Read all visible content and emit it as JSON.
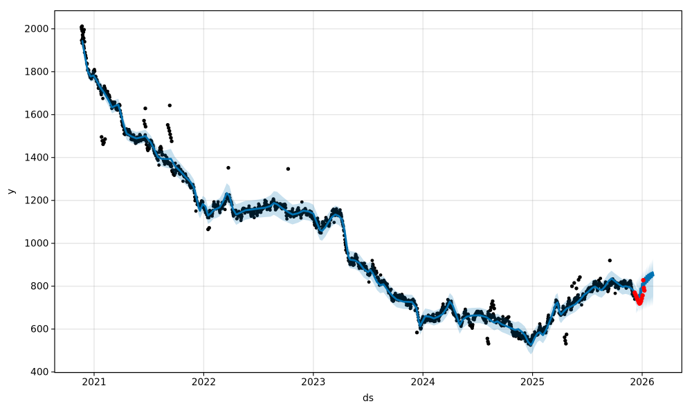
{
  "figure": {
    "kind": "prophet-style time series forecast plot",
    "background": "#ffffff"
  },
  "chart_data": {
    "type": "line",
    "subtype": "forecast with scatter observations and uncertainty band",
    "title": "",
    "xlabel": "ds",
    "ylabel": "y",
    "grid": true,
    "legend_position": "none",
    "xlim": [
      2020.6402,
      2026.3617
    ],
    "ylim": [
      397.4,
      2084.5
    ],
    "x_ticks": [
      2021,
      2022,
      2023,
      2024,
      2025,
      2026
    ],
    "y_ticks": [
      400,
      600,
      800,
      1000,
      1200,
      1400,
      1600,
      1800,
      2000
    ],
    "colors": {
      "forecast_line": "#0072B2",
      "band_fill": "#0072B2",
      "band_alpha": 0.22,
      "observations": "#000000",
      "future_observations": "#ff0000",
      "grid": "rgba(128,128,128,0.2)",
      "spine": "#000000"
    },
    "yhat_keypoints": [
      [
        2020.893,
        1943,
        26
      ],
      [
        2020.918,
        1868,
        26
      ],
      [
        2020.943,
        1800,
        25
      ],
      [
        2020.968,
        1778,
        25
      ],
      [
        2020.994,
        1782,
        25
      ],
      [
        2021.019,
        1763,
        25
      ],
      [
        2021.057,
        1727,
        26
      ],
      [
        2021.088,
        1705,
        26
      ],
      [
        2021.126,
        1672,
        27
      ],
      [
        2021.164,
        1634,
        28
      ],
      [
        2021.196,
        1642,
        28
      ],
      [
        2021.221,
        1646,
        28
      ],
      [
        2021.246,
        1600,
        30
      ],
      [
        2021.271,
        1550,
        30
      ],
      [
        2021.297,
        1512,
        30
      ],
      [
        2021.341,
        1498,
        30
      ],
      [
        2021.385,
        1489,
        30
      ],
      [
        2021.436,
        1495,
        30
      ],
      [
        2021.467,
        1500,
        30
      ],
      [
        2021.518,
        1470,
        32
      ],
      [
        2021.556,
        1430,
        33
      ],
      [
        2021.581,
        1403,
        34
      ],
      [
        2021.619,
        1394,
        36
      ],
      [
        2021.663,
        1393,
        42
      ],
      [
        2021.7,
        1394,
        46
      ],
      [
        2021.738,
        1360,
        42
      ],
      [
        2021.789,
        1335,
        38
      ],
      [
        2021.833,
        1310,
        36
      ],
      [
        2021.877,
        1288,
        36
      ],
      [
        2021.909,
        1262,
        36
      ],
      [
        2021.934,
        1212,
        36
      ],
      [
        2021.953,
        1168,
        36
      ],
      [
        2021.966,
        1152,
        36
      ],
      [
        2021.991,
        1183,
        38
      ],
      [
        2022.015,
        1172,
        40
      ],
      [
        2022.04,
        1130,
        40
      ],
      [
        2022.065,
        1140,
        40
      ],
      [
        2022.09,
        1155,
        40
      ],
      [
        2022.115,
        1160,
        42
      ],
      [
        2022.146,
        1168,
        42
      ],
      [
        2022.178,
        1196,
        44
      ],
      [
        2022.21,
        1234,
        46
      ],
      [
        2022.235,
        1220,
        48
      ],
      [
        2022.266,
        1160,
        48
      ],
      [
        2022.296,
        1134,
        48
      ],
      [
        2022.33,
        1142,
        46
      ],
      [
        2022.38,
        1154,
        44
      ],
      [
        2022.44,
        1158,
        42
      ],
      [
        2022.5,
        1162,
        42
      ],
      [
        2022.56,
        1166,
        44
      ],
      [
        2022.61,
        1174,
        50
      ],
      [
        2022.64,
        1188,
        55
      ],
      [
        2022.67,
        1182,
        58
      ],
      [
        2022.72,
        1162,
        55
      ],
      [
        2022.77,
        1146,
        50
      ],
      [
        2022.81,
        1134,
        46
      ],
      [
        2022.86,
        1140,
        44
      ],
      [
        2022.91,
        1152,
        42
      ],
      [
        2022.96,
        1148,
        42
      ],
      [
        2023.0,
        1138,
        42
      ],
      [
        2023.03,
        1098,
        44
      ],
      [
        2023.06,
        1062,
        46
      ],
      [
        2023.08,
        1058,
        46
      ],
      [
        2023.11,
        1075,
        44
      ],
      [
        2023.14,
        1100,
        42
      ],
      [
        2023.17,
        1122,
        42
      ],
      [
        2023.2,
        1134,
        42
      ],
      [
        2023.23,
        1128,
        42
      ],
      [
        2023.26,
        1112,
        42
      ],
      [
        2023.285,
        1060,
        42
      ],
      [
        2023.305,
        985,
        42
      ],
      [
        2023.32,
        938,
        42
      ],
      [
        2023.335,
        924,
        40
      ],
      [
        2023.38,
        920,
        40
      ],
      [
        2023.42,
        908,
        40
      ],
      [
        2023.46,
        880,
        40
      ],
      [
        2023.5,
        866,
        40
      ],
      [
        2023.52,
        876,
        40
      ],
      [
        2023.545,
        858,
        40
      ],
      [
        2023.58,
        820,
        38
      ],
      [
        2023.61,
        805,
        38
      ],
      [
        2023.64,
        809,
        38
      ],
      [
        2023.68,
        780,
        36
      ],
      [
        2023.72,
        756,
        36
      ],
      [
        2023.76,
        738,
        36
      ],
      [
        2023.82,
        728,
        34
      ],
      [
        2023.9,
        726,
        34
      ],
      [
        2023.94,
        700,
        36
      ],
      [
        2023.96,
        640,
        38
      ],
      [
        2023.975,
        614,
        40
      ],
      [
        2024.0,
        640,
        38
      ],
      [
        2024.02,
        660,
        36
      ],
      [
        2024.06,
        658,
        34
      ],
      [
        2024.1,
        650,
        34
      ],
      [
        2024.14,
        658,
        34
      ],
      [
        2024.18,
        670,
        36
      ],
      [
        2024.22,
        700,
        38
      ],
      [
        2024.245,
        728,
        40
      ],
      [
        2024.27,
        712,
        42
      ],
      [
        2024.3,
        672,
        42
      ],
      [
        2024.335,
        620,
        42
      ],
      [
        2024.365,
        645,
        40
      ],
      [
        2024.4,
        658,
        38
      ],
      [
        2024.45,
        663,
        36
      ],
      [
        2024.52,
        664,
        36
      ],
      [
        2024.58,
        655,
        36
      ],
      [
        2024.62,
        640,
        36
      ],
      [
        2024.65,
        630,
        36
      ],
      [
        2024.68,
        636,
        36
      ],
      [
        2024.72,
        622,
        36
      ],
      [
        2024.76,
        614,
        36
      ],
      [
        2024.8,
        605,
        36
      ],
      [
        2024.84,
        596,
        36
      ],
      [
        2024.87,
        600,
        36
      ],
      [
        2024.9,
        588,
        38
      ],
      [
        2024.93,
        572,
        40
      ],
      [
        2024.96,
        540,
        42
      ],
      [
        2024.985,
        526,
        44
      ],
      [
        2025.0,
        536,
        44
      ],
      [
        2025.02,
        560,
        42
      ],
      [
        2025.045,
        580,
        40
      ],
      [
        2025.065,
        585,
        38
      ],
      [
        2025.095,
        572,
        38
      ],
      [
        2025.12,
        592,
        38
      ],
      [
        2025.15,
        628,
        40
      ],
      [
        2025.18,
        668,
        42
      ],
      [
        2025.21,
        715,
        44
      ],
      [
        2025.228,
        724,
        44
      ],
      [
        2025.245,
        680,
        42
      ],
      [
        2025.26,
        668,
        40
      ],
      [
        2025.28,
        680,
        38
      ],
      [
        2025.31,
        695,
        38
      ],
      [
        2025.35,
        705,
        36
      ],
      [
        2025.39,
        716,
        36
      ],
      [
        2025.43,
        735,
        36
      ],
      [
        2025.47,
        760,
        36
      ],
      [
        2025.51,
        775,
        36
      ],
      [
        2025.545,
        792,
        36
      ],
      [
        2025.57,
        798,
        36
      ],
      [
        2025.6,
        788,
        36
      ],
      [
        2025.63,
        782,
        36
      ],
      [
        2025.66,
        798,
        36
      ],
      [
        2025.69,
        822,
        36
      ],
      [
        2025.72,
        836,
        36
      ],
      [
        2025.75,
        824,
        36
      ],
      [
        2025.79,
        808,
        36
      ],
      [
        2025.82,
        797,
        36
      ],
      [
        2025.85,
        800,
        36
      ],
      [
        2025.88,
        796,
        36
      ],
      [
        2025.9,
        790,
        38
      ],
      [
        2025.92,
        780,
        38
      ],
      [
        2025.935,
        765,
        40
      ],
      [
        2025.95,
        748,
        40
      ],
      [
        2025.962,
        743,
        40
      ]
    ],
    "forecast_line_points": [
      [
        2025.97,
        760
      ],
      [
        2025.977,
        748
      ],
      [
        2025.984,
        790
      ],
      [
        2025.991,
        768
      ],
      [
        2025.998,
        812
      ],
      [
        2026.005,
        785
      ],
      [
        2026.012,
        830
      ],
      [
        2026.019,
        800
      ],
      [
        2026.026,
        840
      ],
      [
        2026.033,
        812
      ],
      [
        2026.04,
        848
      ],
      [
        2026.047,
        820
      ],
      [
        2026.054,
        854
      ],
      [
        2026.061,
        828
      ],
      [
        2026.068,
        858
      ],
      [
        2026.075,
        836
      ],
      [
        2026.082,
        862
      ],
      [
        2026.089,
        842
      ],
      [
        2026.096,
        865
      ],
      [
        2026.103,
        850
      ]
    ],
    "forecast_band": {
      "t_start": 2025.945,
      "t_end": 2026.107,
      "upper_start": 795,
      "upper_end": 903,
      "lower_start": 703,
      "lower_end": 742,
      "spike_step": 0.006,
      "spike_up": 32,
      "spike_up_in": 16,
      "spike_dn": 30,
      "spike_dn_in": 14
    },
    "observations": {
      "t_start": 2020.885,
      "t_end": 2025.932,
      "step_days": 1,
      "seed": 7,
      "noise_ar": 0.88,
      "noise_eps": 21,
      "jump_prob": 0.018,
      "jump_scale": 110,
      "marker_radius": 2.4,
      "outliers": [
        [
          2020.885,
          2008
        ],
        [
          2020.887,
          1999
        ],
        [
          2020.89,
          2012
        ],
        [
          2020.892,
          1990
        ],
        [
          2020.895,
          1972
        ],
        [
          2020.898,
          1962
        ],
        [
          2020.902,
          1985
        ],
        [
          2020.905,
          1956
        ],
        [
          2020.908,
          1996
        ],
        [
          2020.912,
          1940
        ],
        [
          2021.068,
          1496
        ],
        [
          2021.075,
          1478
        ],
        [
          2021.082,
          1462
        ],
        [
          2021.09,
          1470
        ],
        [
          2021.1,
          1486
        ],
        [
          2021.455,
          1572
        ],
        [
          2021.462,
          1556
        ],
        [
          2021.467,
          1629
        ],
        [
          2021.47,
          1544
        ],
        [
          2021.672,
          1552
        ],
        [
          2021.68,
          1538
        ],
        [
          2021.687,
          1524
        ],
        [
          2021.69,
          1643
        ],
        [
          2021.694,
          1508
        ],
        [
          2021.701,
          1492
        ],
        [
          2021.708,
          1476
        ],
        [
          2022.04,
          1065
        ],
        [
          2022.05,
          1072
        ],
        [
          2022.225,
          1352
        ],
        [
          2022.77,
          1347
        ],
        [
          2023.945,
          584
        ],
        [
          2024.588,
          556
        ],
        [
          2024.593,
          542
        ],
        [
          2024.598,
          532
        ],
        [
          2024.615,
          688
        ],
        [
          2024.622,
          702
        ],
        [
          2024.629,
          718
        ],
        [
          2024.636,
          730
        ],
        [
          2024.643,
          712
        ],
        [
          2024.65,
          696
        ],
        [
          2025.292,
          562
        ],
        [
          2025.298,
          546
        ],
        [
          2025.304,
          532
        ],
        [
          2025.31,
          575
        ],
        [
          2025.36,
          800
        ],
        [
          2025.38,
          815
        ],
        [
          2025.4,
          790
        ],
        [
          2025.42,
          830
        ],
        [
          2025.432,
          842
        ],
        [
          2025.705,
          920
        ]
      ]
    },
    "future_observations": {
      "marker_radius": 3.2,
      "points": [
        [
          2025.932,
          770
        ],
        [
          2025.94,
          760
        ],
        [
          2025.948,
          750
        ],
        [
          2025.955,
          741
        ],
        [
          2025.962,
          733
        ],
        [
          2025.969,
          724
        ],
        [
          2025.976,
          719
        ],
        [
          2025.983,
          722
        ],
        [
          2025.99,
          730
        ],
        [
          2025.997,
          743
        ],
        [
          2026.004,
          757
        ],
        [
          2026.01,
          828
        ],
        [
          2026.015,
          792
        ],
        [
          2026.02,
          780
        ]
      ]
    }
  }
}
